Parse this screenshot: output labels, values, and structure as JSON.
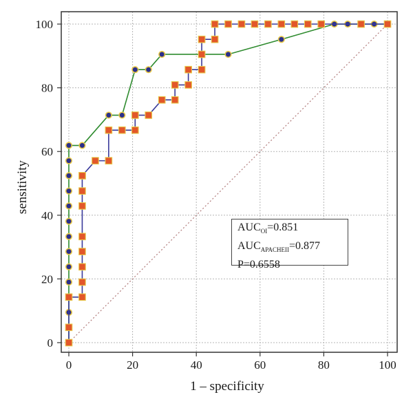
{
  "chart_data": {
    "type": "line",
    "title": "",
    "xlabel": "1 – specificity",
    "ylabel": "sensitivity",
    "xlim": [
      0,
      100
    ],
    "ylim": [
      0,
      100
    ],
    "xticks": [
      0,
      20,
      40,
      60,
      80,
      100
    ],
    "yticks": [
      0,
      20,
      40,
      60,
      80,
      100
    ],
    "grid": true,
    "reference_line": {
      "x": [
        0,
        100
      ],
      "y": [
        0,
        100
      ],
      "color": "#b07a7a",
      "style": "dotted"
    },
    "series": [
      {
        "color": "#2e8b2e",
        "marker": "circle",
        "marker_fill": "#2b2f8c",
        "marker_edge": "#e8c94a",
        "x": [
          0,
          0,
          0,
          0,
          0,
          0,
          0,
          0,
          0,
          0,
          0,
          0,
          0,
          0,
          4.2,
          12.5,
          16.7,
          20.8,
          25,
          29.2,
          41.7,
          50,
          66.7,
          83.3,
          87.5,
          95.8,
          100
        ],
        "y": [
          0,
          4.8,
          9.5,
          14.3,
          19,
          23.8,
          28.6,
          33.3,
          38.1,
          42.9,
          47.6,
          52.4,
          57.1,
          61.9,
          61.9,
          71.4,
          71.4,
          85.7,
          85.7,
          90.5,
          90.5,
          90.5,
          95.2,
          100,
          100,
          100,
          100
        ]
      },
      {
        "color": "#3a3a9a",
        "marker": "square",
        "marker_fill": "#e2572a",
        "marker_edge": "#e8c94a",
        "x": [
          0,
          0,
          0,
          4.2,
          4.2,
          4.2,
          4.2,
          4.2,
          4.2,
          4.2,
          4.2,
          4.2,
          8.3,
          12.5,
          12.5,
          16.7,
          20.8,
          20.8,
          25,
          29.2,
          33.3,
          33.3,
          37.5,
          37.5,
          41.7,
          41.7,
          41.7,
          45.8,
          45.8,
          50,
          54.2,
          58.3,
          62.5,
          66.7,
          70.8,
          75,
          79.2,
          91.7,
          100
        ],
        "y": [
          0,
          4.8,
          14.3,
          14.3,
          19,
          23.8,
          28.6,
          33.3,
          42.9,
          47.6,
          52.4,
          52.4,
          57.1,
          57.1,
          66.7,
          66.7,
          66.7,
          71.4,
          71.4,
          76.2,
          76.2,
          80.9,
          80.9,
          85.7,
          85.7,
          90.5,
          95.2,
          95.2,
          100,
          100,
          100,
          100,
          100,
          100,
          100,
          100,
          100,
          100,
          100
        ]
      }
    ],
    "annotation": {
      "line1_prefix": "AUC",
      "line1_sub": "OI",
      "line1_value": "=0.851",
      "line2_prefix": "AUC",
      "line2_sub": "APACHEII",
      "line2_value": "=0.877",
      "line3": "P=0.6558"
    }
  }
}
